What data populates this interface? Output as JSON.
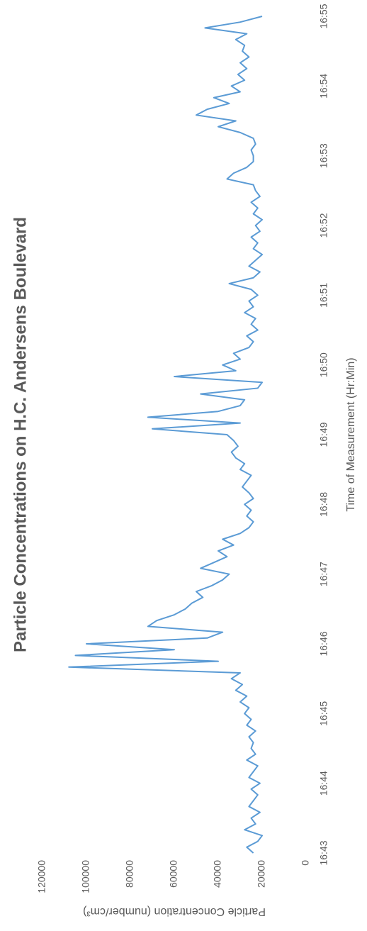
{
  "chart_data": {
    "type": "line",
    "title": "Particle Concentrations on H.C. Andersens Boulevard",
    "xlabel": "Time of Measurement (Hr:Min)",
    "ylabel": "Particle Concentration (number/cm³)",
    "x_tick_labels": [
      "16:43",
      "16:44",
      "16:45",
      "16:46",
      "16:47",
      "16:48",
      "16:49",
      "16:50",
      "16:51",
      "16:52",
      "16:53",
      "16:54",
      "16:55"
    ],
    "color": "#5b9bd5",
    "ylim": [
      0,
      120000
    ],
    "yticks": [
      0,
      20000,
      40000,
      60000,
      80000,
      100000,
      120000
    ],
    "grid": false,
    "values": [
      24000,
      27000,
      22000,
      20000,
      28000,
      23000,
      25000,
      21000,
      26000,
      24000,
      22000,
      25000,
      21000,
      26000,
      24000,
      22000,
      27000,
      23000,
      25000,
      24000,
      26000,
      23000,
      27000,
      25000,
      28000,
      26000,
      30000,
      27000,
      32000,
      29000,
      34000,
      30000,
      108000,
      40000,
      105000,
      60000,
      100000,
      45000,
      38000,
      72000,
      68000,
      60000,
      55000,
      52000,
      47000,
      50000,
      43000,
      38000,
      35000,
      48000,
      42000,
      36000,
      40000,
      33000,
      38000,
      30000,
      26000,
      24000,
      27000,
      25000,
      28000,
      24000,
      26000,
      29000,
      27000,
      25000,
      30000,
      28000,
      32000,
      34000,
      31000,
      33000,
      36000,
      70000,
      30000,
      72000,
      40000,
      30000,
      28000,
      48000,
      22000,
      20000,
      60000,
      32000,
      38000,
      30000,
      33000,
      26000,
      24000,
      27000,
      22000,
      25000,
      23000,
      28000,
      24000,
      26000,
      22000,
      25000,
      35000,
      24000,
      21000,
      26000,
      23000,
      20000,
      24000,
      22000,
      25000,
      21000,
      23000,
      20000,
      24000,
      22000,
      25000,
      21000,
      23000,
      24000,
      36000,
      33000,
      27000,
      24000,
      24000,
      25000,
      23000,
      24000,
      30000,
      40000,
      32000,
      50000,
      45000,
      35000,
      42000,
      30000,
      34000,
      28000,
      31000,
      27000,
      30000,
      26000,
      29000,
      28000,
      32000,
      27000,
      46000,
      30000,
      20000
    ]
  }
}
